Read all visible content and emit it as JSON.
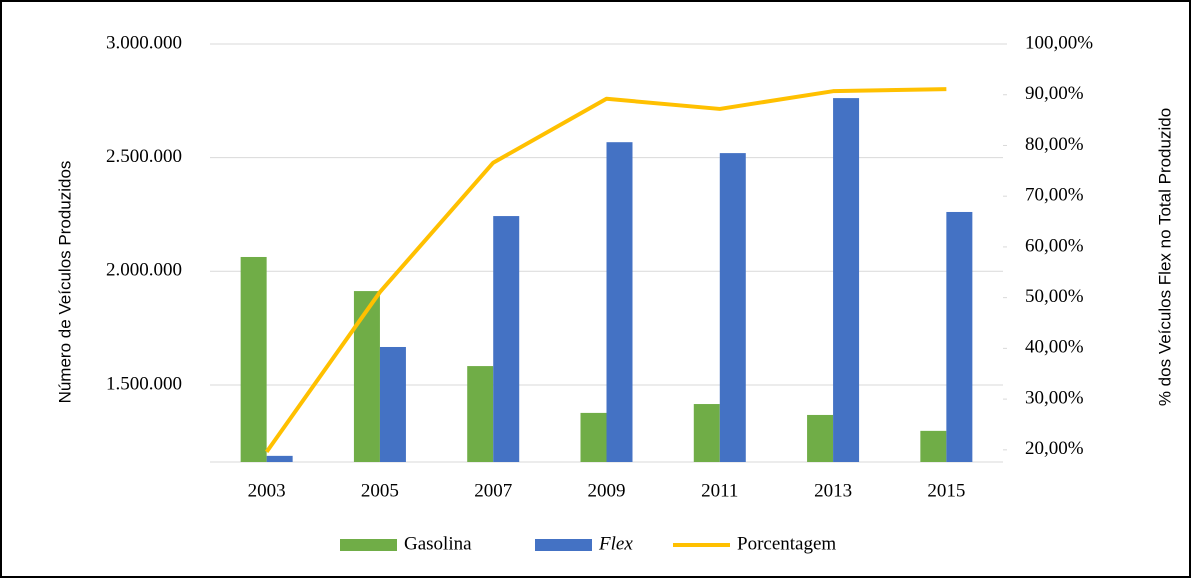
{
  "chart_data": {
    "type": "bar_line",
    "ylabel": "Número de Veículos Produzidos",
    "y2label": "% dos Veículos Flex no Total Produzido",
    "categories": [
      "2003",
      "2005",
      "2007",
      "2009",
      "2011",
      "2013",
      "2015"
    ],
    "series": [
      {
        "name": "Gasolina",
        "color": "#70ad47",
        "type": "bar",
        "values": [
          2063000,
          1913000,
          1583000,
          1377000,
          1416000,
          1368000,
          1298000
        ]
      },
      {
        "name": "Flex",
        "color": "#4472c4",
        "type": "bar",
        "values": [
          1188000,
          1667000,
          2243000,
          2568000,
          2520000,
          2762000,
          2261000
        ]
      },
      {
        "name": "Porcentagem",
        "color": "#ffc000",
        "type": "line",
        "axis": "y2",
        "values": [
          19.6,
          51.1,
          76.6,
          89.2,
          87.2,
          90.7,
          91.1
        ]
      }
    ],
    "ylim": [
      1161000,
      3000000
    ],
    "yticks": [
      {
        "value": 1500000,
        "label": "1.500.000"
      },
      {
        "value": 2000000,
        "label": "2.000.000"
      },
      {
        "value": 2500000,
        "label": "2.500.000"
      },
      {
        "value": 3000000,
        "label": "3.000.000"
      }
    ],
    "y2lim": [
      17.6,
      100
    ],
    "y2ticks": [
      {
        "value": 20,
        "label": "20,00%"
      },
      {
        "value": 30,
        "label": "30,00%"
      },
      {
        "value": 40,
        "label": "40,00%"
      },
      {
        "value": 50,
        "label": "50,00%"
      },
      {
        "value": 60,
        "label": "60,00%"
      },
      {
        "value": 70,
        "label": "70,00%"
      },
      {
        "value": 80,
        "label": "80,00%"
      },
      {
        "value": 90,
        "label": "90,00%"
      },
      {
        "value": 100,
        "label": "100,00%"
      }
    ],
    "grid": true,
    "legend": "bottom"
  }
}
